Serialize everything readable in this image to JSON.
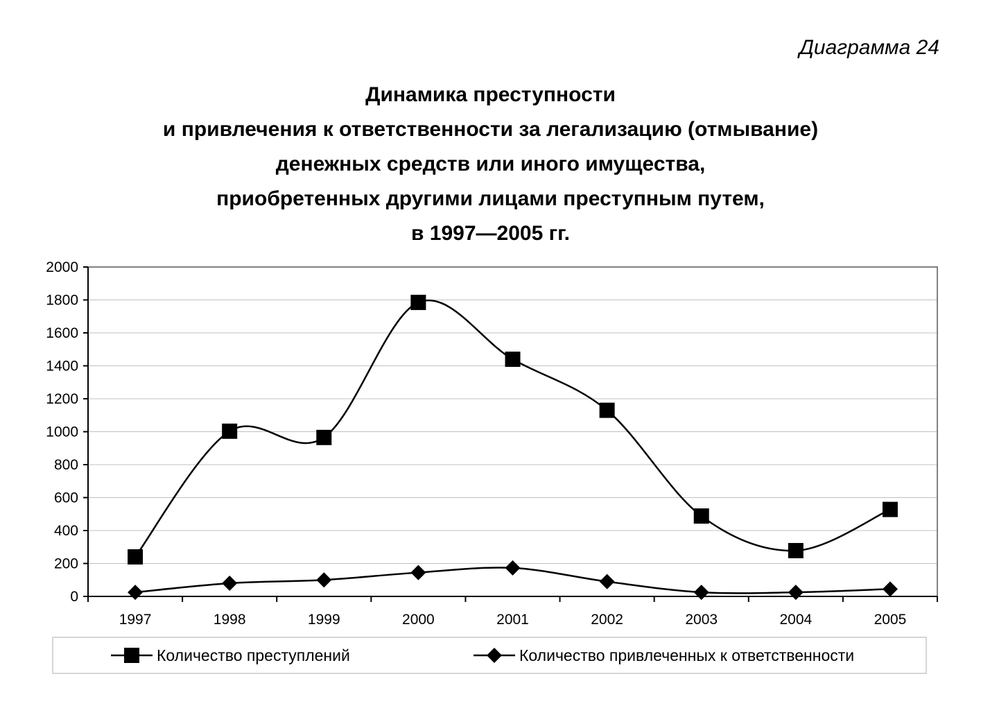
{
  "caption": "Диаграмма 24",
  "title_lines": [
    "Динамика преступности",
    "и привлечения к ответственности за легализацию (отмывание)",
    "денежных средств или иного имущества,",
    "приобретенных другими лицами преступным путем,",
    "в 1997—2005 гг."
  ],
  "chart_data": {
    "type": "line",
    "title": "Динамика преступности и привлечения к ответственности за легализацию (отмывание) денежных средств или иного имущества, приобретенных другими лицами преступным путем, в 1997—2005 гг.",
    "categories": [
      "1997",
      "1998",
      "1999",
      "2000",
      "2001",
      "2002",
      "2003",
      "2004",
      "2005"
    ],
    "yticks": [
      "0",
      "200",
      "400",
      "600",
      "800",
      "1000",
      "1200",
      "1400",
      "1600",
      "1800",
      "2000"
    ],
    "ylim": [
      0,
      2000
    ],
    "grid": true,
    "smooth": true,
    "legend_position": "bottom",
    "series": [
      {
        "name": "Количество преступлений",
        "marker": "square",
        "values": [
          240,
          1003,
          965,
          1785,
          1440,
          1130,
          488,
          278,
          528
        ]
      },
      {
        "name": "Количество привлеченных к ответственности",
        "marker": "diamond",
        "values": [
          25,
          80,
          100,
          145,
          173,
          90,
          25,
          25,
          45
        ]
      }
    ]
  }
}
